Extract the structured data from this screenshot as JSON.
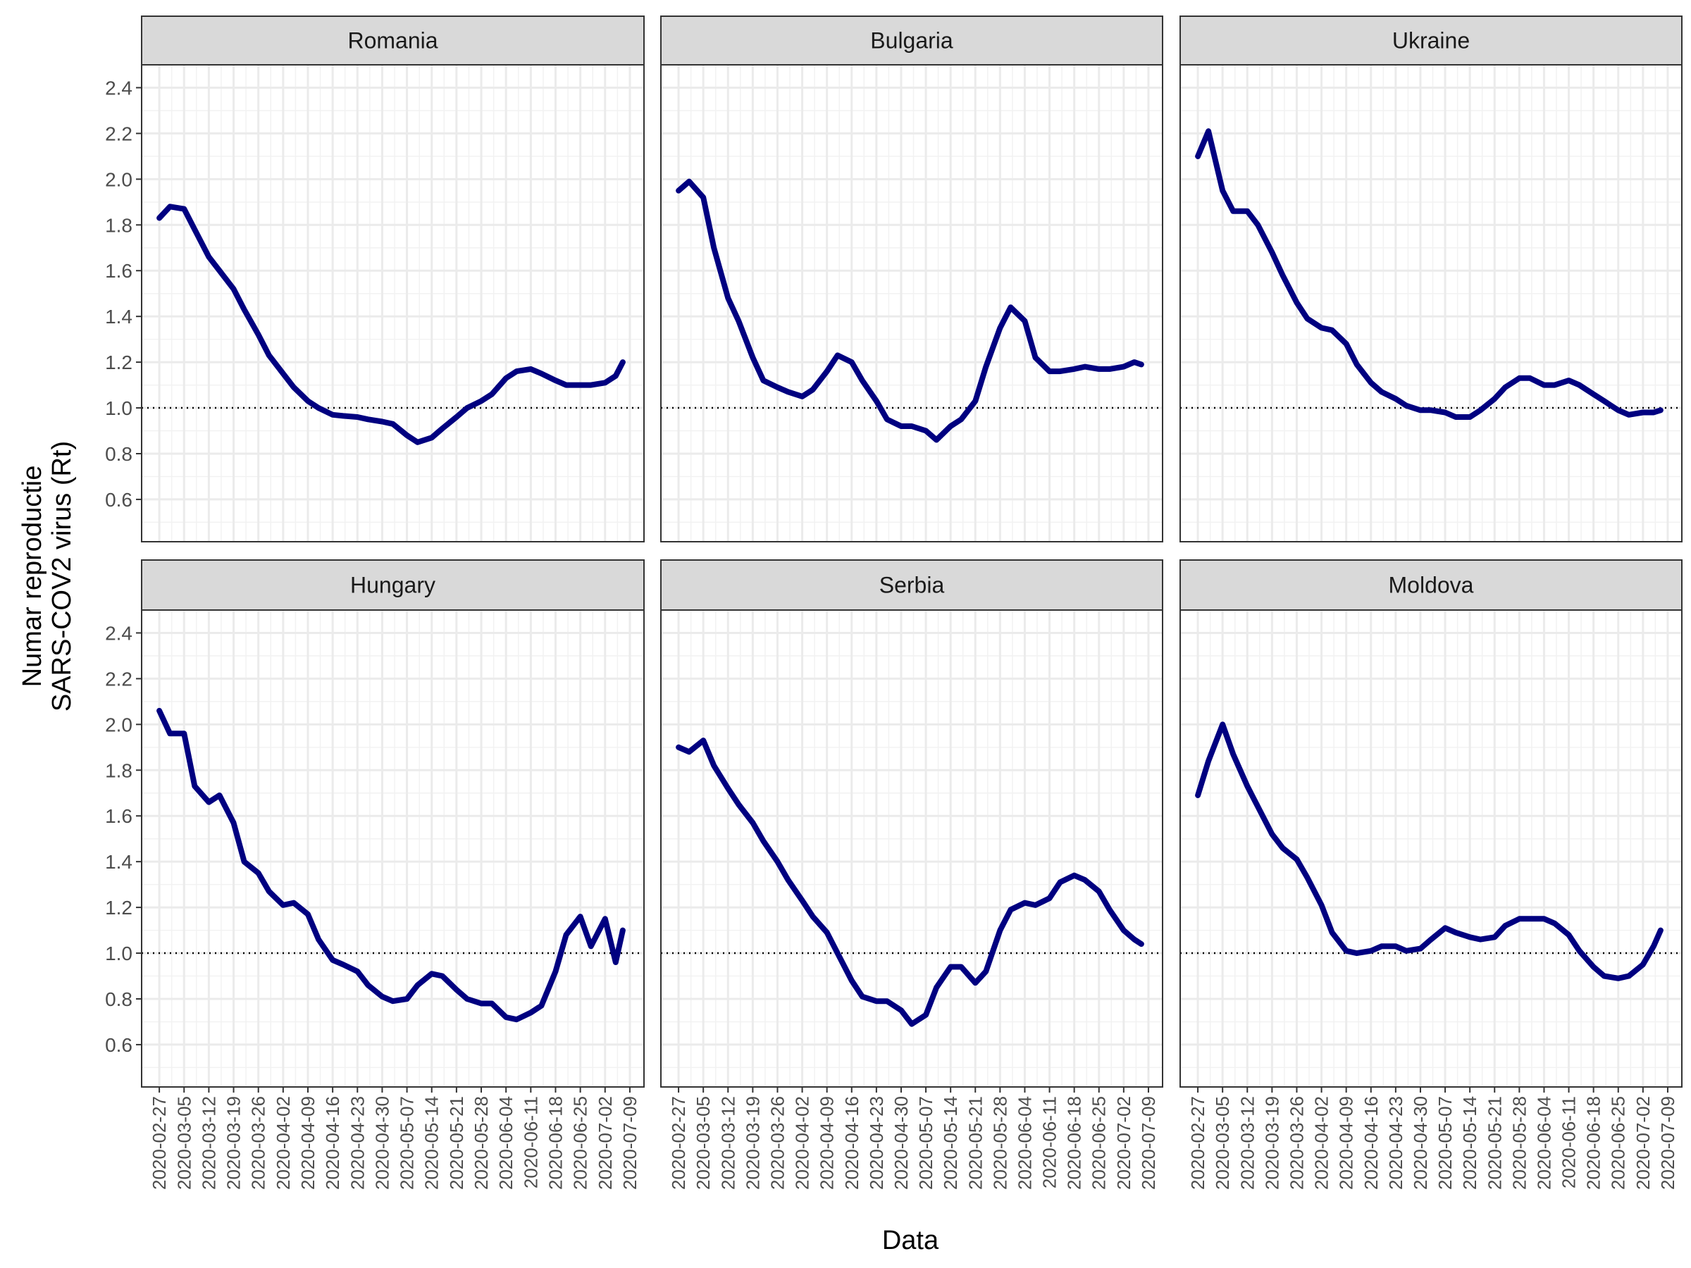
{
  "chart_data": {
    "type": "line",
    "xlabel": "Data",
    "ylabel": [
      "Numar reproductie",
      "SARS-COV2 virus (Rt)"
    ],
    "x": [
      "2020-02-27",
      "2020-03-01",
      "2020-03-05",
      "2020-03-08",
      "2020-03-12",
      "2020-03-15",
      "2020-03-19",
      "2020-03-22",
      "2020-03-26",
      "2020-03-29",
      "2020-04-02",
      "2020-04-05",
      "2020-04-09",
      "2020-04-12",
      "2020-04-16",
      "2020-04-19",
      "2020-04-23",
      "2020-04-26",
      "2020-04-30",
      "2020-05-03",
      "2020-05-07",
      "2020-05-10",
      "2020-05-14",
      "2020-05-17",
      "2020-05-21",
      "2020-05-24",
      "2020-05-28",
      "2020-05-31",
      "2020-06-04",
      "2020-06-07",
      "2020-06-11",
      "2020-06-14",
      "2020-06-18",
      "2020-06-21",
      "2020-06-25",
      "2020-06-28",
      "2020-07-02",
      "2020-07-05",
      "2020-07-07"
    ],
    "series": [
      {
        "name": "Romania",
        "color": "#000080",
        "values": [
          1.83,
          1.88,
          1.87,
          1.78,
          1.66,
          1.6,
          1.52,
          1.43,
          1.32,
          1.23,
          1.15,
          1.09,
          1.03,
          1.0,
          0.97,
          0.965,
          0.96,
          0.95,
          0.94,
          0.93,
          0.88,
          0.85,
          0.87,
          0.91,
          0.96,
          1.0,
          1.03,
          1.06,
          1.13,
          1.16,
          1.17,
          1.15,
          1.12,
          1.1,
          1.1,
          1.1,
          1.11,
          1.14,
          1.2
        ]
      },
      {
        "name": "Bulgaria",
        "color": "#000080",
        "values": [
          1.95,
          1.99,
          1.92,
          1.7,
          1.48,
          1.38,
          1.22,
          1.12,
          1.09,
          1.07,
          1.05,
          1.08,
          1.16,
          1.23,
          1.2,
          1.12,
          1.03,
          0.95,
          0.92,
          0.92,
          0.9,
          0.86,
          0.92,
          0.95,
          1.03,
          1.18,
          1.35,
          1.44,
          1.38,
          1.22,
          1.16,
          1.16,
          1.17,
          1.18,
          1.17,
          1.17,
          1.18,
          1.2,
          1.19
        ]
      },
      {
        "name": "Ukraine",
        "color": "#000080",
        "values": [
          2.1,
          2.21,
          1.95,
          1.86,
          1.86,
          1.8,
          1.68,
          1.58,
          1.46,
          1.39,
          1.35,
          1.34,
          1.28,
          1.19,
          1.11,
          1.07,
          1.04,
          1.01,
          0.99,
          0.99,
          0.98,
          0.96,
          0.96,
          0.99,
          1.04,
          1.09,
          1.13,
          1.13,
          1.1,
          1.1,
          1.12,
          1.1,
          1.06,
          1.03,
          0.99,
          0.97,
          0.98,
          0.98,
          0.99
        ]
      },
      {
        "name": "Hungary",
        "color": "#000080",
        "values": [
          2.06,
          1.96,
          1.96,
          1.73,
          1.66,
          1.69,
          1.57,
          1.4,
          1.35,
          1.27,
          1.21,
          1.22,
          1.17,
          1.06,
          0.97,
          0.95,
          0.92,
          0.86,
          0.81,
          0.79,
          0.8,
          0.86,
          0.91,
          0.9,
          0.84,
          0.8,
          0.78,
          0.78,
          0.72,
          0.71,
          0.74,
          0.77,
          0.92,
          1.08,
          1.16,
          1.03,
          1.15,
          0.96,
          1.1
        ]
      },
      {
        "name": "Serbia",
        "color": "#000080",
        "values": [
          1.9,
          1.88,
          1.93,
          1.82,
          1.72,
          1.65,
          1.57,
          1.49,
          1.4,
          1.32,
          1.23,
          1.16,
          1.09,
          1.0,
          0.88,
          0.81,
          0.79,
          0.79,
          0.75,
          0.69,
          0.73,
          0.85,
          0.94,
          0.94,
          0.87,
          0.92,
          1.1,
          1.19,
          1.22,
          1.21,
          1.24,
          1.31,
          1.34,
          1.32,
          1.27,
          1.19,
          1.1,
          1.06,
          1.04
        ]
      },
      {
        "name": "Moldova",
        "color": "#000080",
        "values": [
          1.69,
          1.84,
          2.0,
          1.87,
          1.73,
          1.64,
          1.52,
          1.46,
          1.41,
          1.33,
          1.21,
          1.09,
          1.01,
          1.0,
          1.01,
          1.03,
          1.03,
          1.01,
          1.02,
          1.06,
          1.11,
          1.09,
          1.07,
          1.06,
          1.07,
          1.12,
          1.15,
          1.15,
          1.15,
          1.13,
          1.08,
          1.01,
          0.94,
          0.9,
          0.89,
          0.9,
          0.95,
          1.03,
          1.1
        ]
      }
    ],
    "xlim": [
      "2020-02-22",
      "2020-07-13"
    ],
    "xticks": [
      "2020-02-27",
      "2020-03-05",
      "2020-03-12",
      "2020-03-19",
      "2020-03-26",
      "2020-04-02",
      "2020-04-09",
      "2020-04-16",
      "2020-04-23",
      "2020-04-30",
      "2020-05-07",
      "2020-05-14",
      "2020-05-21",
      "2020-05-28",
      "2020-06-04",
      "2020-06-11",
      "2020-06-18",
      "2020-06-25",
      "2020-07-02",
      "2020-07-09"
    ],
    "ylim": [
      0.415,
      2.5
    ],
    "yticks": [
      0.6,
      0.8,
      {
        "value": 1,
        "label": "1.0"
      },
      1.2,
      1.4,
      1.6,
      1.8,
      {
        "value": 2,
        "label": "2.0"
      },
      2.2,
      2.4
    ],
    "hline": 1,
    "grid": true
  }
}
